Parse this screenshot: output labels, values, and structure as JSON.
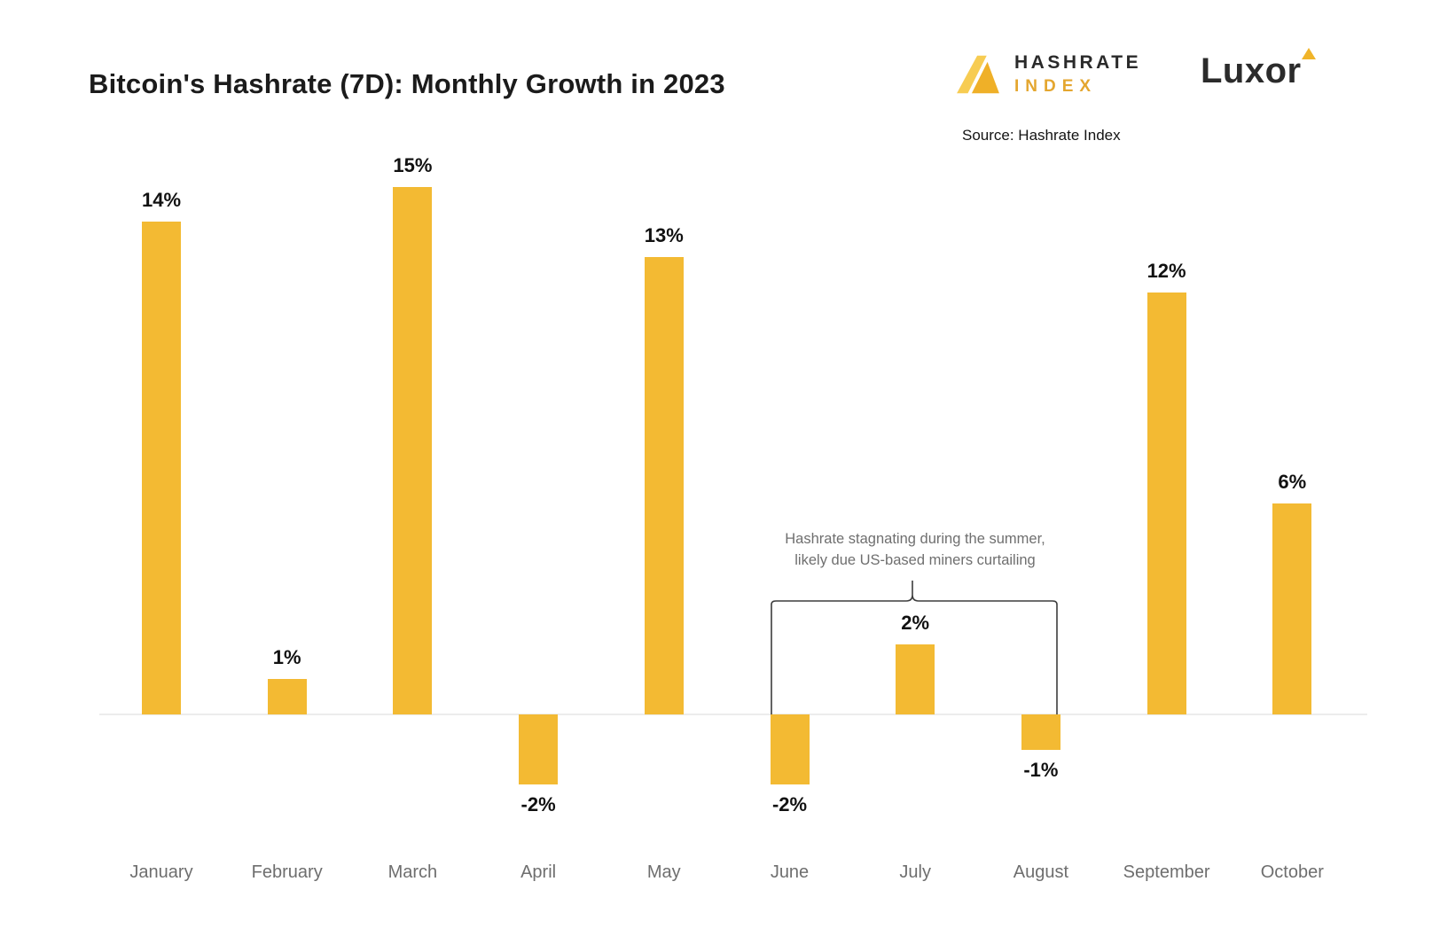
{
  "meta": {
    "title": "Bitcoin's Hashrate (7D): Monthly Growth in 2023",
    "source": "Source: Hashrate Index"
  },
  "branding": {
    "hashrate_logo_line1": "HASHRATE",
    "hashrate_logo_line2": "INDEX",
    "hashrate_logo_icon": "hashrate-index-triangle-mark",
    "luxor_logo": "Luxor",
    "luxor_logo_icon": "yellow-triangle"
  },
  "annotation": {
    "line1": "Hashrate stagnating during the summer,",
    "line2": "likely due US-based miners curtailing",
    "spans_months": [
      "June",
      "July",
      "August"
    ]
  },
  "colors": {
    "bar": "#F3BA33",
    "title_text": "#1b1b1b",
    "axis_label": "#6e6e6e",
    "annotation_text": "#6f6f6f",
    "logo_yellow": "#F0B429",
    "logo_dark": "#2b2b2b",
    "baseline": "#ececec"
  },
  "chart_data": {
    "type": "bar",
    "title": "Bitcoin's Hashrate (7D): Monthly Growth in 2023",
    "categories": [
      "January",
      "February",
      "March",
      "April",
      "May",
      "June",
      "July",
      "August",
      "September",
      "October"
    ],
    "values": [
      14,
      1,
      15,
      -2,
      13,
      -2,
      2,
      -1,
      12,
      6
    ],
    "value_labels": [
      "14%",
      "1%",
      "15%",
      "-2%",
      "13%",
      "-2%",
      "2%",
      "-1%",
      "12%",
      "6%"
    ],
    "xlabel": "",
    "ylabel": "",
    "ylim": [
      -3,
      16
    ],
    "grid": false,
    "legend": false,
    "bar_color": "#F3BA33",
    "annotation": "Hashrate stagnating during the summer, likely due US-based miners curtailing"
  }
}
